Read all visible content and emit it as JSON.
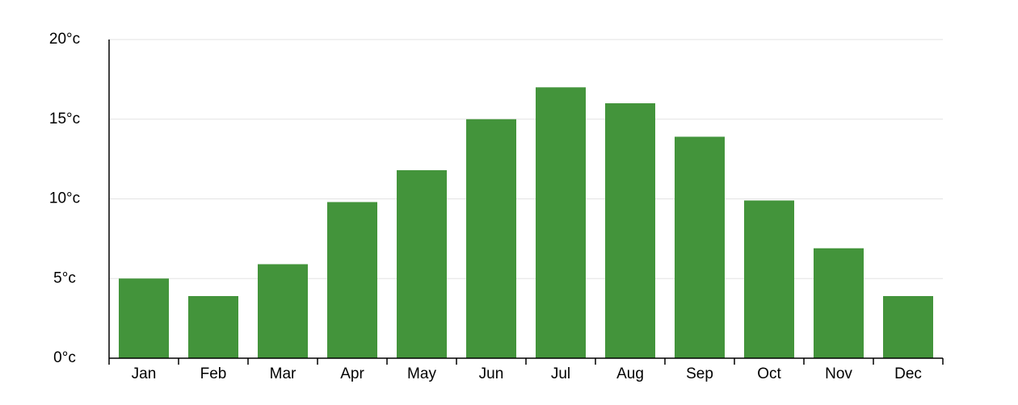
{
  "chart_data": {
    "type": "bar",
    "categories": [
      "Jan",
      "Feb",
      "Mar",
      "Apr",
      "May",
      "Jun",
      "Jul",
      "Aug",
      "Sep",
      "Oct",
      "Nov",
      "Dec"
    ],
    "values": [
      5,
      3.9,
      5.9,
      9.8,
      11.8,
      15,
      17,
      16,
      13.9,
      9.9,
      6.9,
      3.9
    ],
    "color": "#43943b",
    "ylim": [
      0,
      20
    ],
    "yticks": [
      {
        "value": 0,
        "label": "0°c"
      },
      {
        "value": 5,
        "label": "5°c"
      },
      {
        "value": 10,
        "label": "10°c"
      },
      {
        "value": 15,
        "label": "15°c"
      },
      {
        "value": 20,
        "label": "20°c"
      }
    ],
    "grid": true
  }
}
